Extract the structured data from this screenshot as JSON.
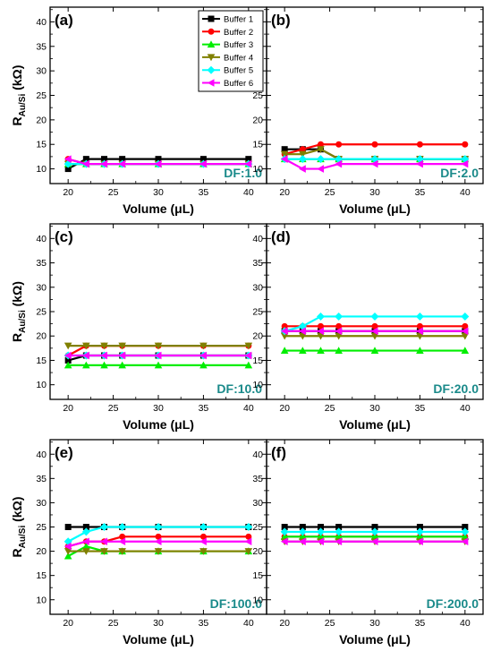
{
  "colors": {
    "df_label": "#1a8a8a",
    "series": [
      "#000000",
      "#ff0000",
      "#00ee00",
      "#808000",
      "#00ffff",
      "#ff00ff"
    ]
  },
  "legend": {
    "entries": [
      "Buffer 1",
      "Buffer 2",
      "Buffer 3",
      "Buffer 4",
      "Buffer 5",
      "Buffer 6"
    ],
    "markers": [
      "square",
      "circle",
      "triangle-up",
      "triangle-down",
      "diamond",
      "triangle-left"
    ],
    "placement": "top-right of panel (a)"
  },
  "chart_data": [
    {
      "type": "line",
      "panel": "(a)",
      "annotation": "DF:1.0",
      "xlabel": "Volume (μL)",
      "ylabel": "R_Au/Si (kΩ)",
      "xlim": [
        18,
        42
      ],
      "ylim": [
        7,
        43
      ],
      "xticks": [
        20,
        25,
        30,
        35,
        40
      ],
      "yticks": [
        10,
        15,
        20,
        25,
        30,
        35,
        40
      ],
      "x": [
        20,
        22,
        24,
        26,
        30,
        35,
        40
      ],
      "series": [
        {
          "name": "Buffer 1",
          "values": [
            10,
            12,
            12,
            12,
            12,
            12,
            12
          ]
        },
        {
          "name": "Buffer 2",
          "values": [
            12,
            11,
            11,
            11,
            11,
            11,
            11
          ]
        },
        {
          "name": "Buffer 3",
          "values": [
            11,
            11,
            11,
            11,
            11,
            11,
            11
          ]
        },
        {
          "name": "Buffer 4",
          "values": [
            11,
            11,
            11,
            11,
            11,
            11,
            11
          ]
        },
        {
          "name": "Buffer 5",
          "values": [
            11,
            11,
            11,
            11,
            11,
            11,
            11
          ]
        },
        {
          "name": "Buffer 6",
          "values": [
            12,
            11,
            11,
            11,
            11,
            11,
            11
          ]
        }
      ]
    },
    {
      "type": "line",
      "panel": "(b)",
      "annotation": "DF:2.0",
      "xlabel": "Volume (μL)",
      "ylabel": "",
      "xlim": [
        18,
        42
      ],
      "ylim": [
        7,
        43
      ],
      "xticks": [
        20,
        25,
        30,
        35,
        40
      ],
      "yticks": [
        10,
        15,
        20,
        25,
        30,
        35,
        40
      ],
      "x": [
        20,
        22,
        24,
        26,
        30,
        35,
        40
      ],
      "series": [
        {
          "name": "Buffer 1",
          "values": [
            14,
            14,
            14,
            12,
            12,
            12,
            12
          ]
        },
        {
          "name": "Buffer 2",
          "values": [
            13,
            14,
            15,
            15,
            15,
            15,
            15
          ]
        },
        {
          "name": "Buffer 3",
          "values": [
            12,
            12,
            12,
            12,
            12,
            12,
            12
          ]
        },
        {
          "name": "Buffer 4",
          "values": [
            13,
            13,
            14,
            12,
            12,
            12,
            12
          ]
        },
        {
          "name": "Buffer 5",
          "values": [
            12,
            12,
            12,
            12,
            12,
            12,
            12
          ]
        },
        {
          "name": "Buffer 6",
          "values": [
            12,
            10,
            10,
            11,
            11,
            11,
            11
          ]
        }
      ]
    },
    {
      "type": "line",
      "panel": "(c)",
      "annotation": "DF:10.0",
      "xlabel": "Volume (μL)",
      "ylabel": "R_Au/Si (kΩ)",
      "xlim": [
        18,
        42
      ],
      "ylim": [
        7,
        43
      ],
      "xticks": [
        20,
        25,
        30,
        35,
        40
      ],
      "yticks": [
        10,
        15,
        20,
        25,
        30,
        35,
        40
      ],
      "x": [
        20,
        22,
        24,
        26,
        30,
        35,
        40
      ],
      "series": [
        {
          "name": "Buffer 1",
          "values": [
            15,
            16,
            16,
            16,
            16,
            16,
            16
          ]
        },
        {
          "name": "Buffer 2",
          "values": [
            16,
            18,
            18,
            18,
            18,
            18,
            18
          ]
        },
        {
          "name": "Buffer 3",
          "values": [
            14,
            14,
            14,
            14,
            14,
            14,
            14
          ]
        },
        {
          "name": "Buffer 4",
          "values": [
            18,
            18,
            18,
            18,
            18,
            18,
            18
          ]
        },
        {
          "name": "Buffer 5",
          "values": [
            16,
            16,
            16,
            16,
            16,
            16,
            16
          ]
        },
        {
          "name": "Buffer 6",
          "values": [
            16,
            16,
            16,
            16,
            16,
            16,
            16
          ]
        }
      ]
    },
    {
      "type": "line",
      "panel": "(d)",
      "annotation": "DF:20.0",
      "xlabel": "Volume (μL)",
      "ylabel": "",
      "xlim": [
        18,
        42
      ],
      "ylim": [
        7,
        43
      ],
      "xticks": [
        20,
        25,
        30,
        35,
        40
      ],
      "yticks": [
        10,
        15,
        20,
        25,
        30,
        35,
        40
      ],
      "x": [
        20,
        22,
        24,
        26,
        30,
        35,
        40
      ],
      "series": [
        {
          "name": "Buffer 1",
          "values": [
            21,
            21,
            21,
            21,
            21,
            21,
            21
          ]
        },
        {
          "name": "Buffer 2",
          "values": [
            22,
            22,
            22,
            22,
            22,
            22,
            22
          ]
        },
        {
          "name": "Buffer 3",
          "values": [
            17,
            17,
            17,
            17,
            17,
            17,
            17
          ]
        },
        {
          "name": "Buffer 4",
          "values": [
            20,
            20,
            20,
            20,
            20,
            20,
            20
          ]
        },
        {
          "name": "Buffer 5",
          "values": [
            21,
            22,
            24,
            24,
            24,
            24,
            24
          ]
        },
        {
          "name": "Buffer 6",
          "values": [
            21,
            21,
            21,
            21,
            21,
            21,
            21
          ]
        }
      ]
    },
    {
      "type": "line",
      "panel": "(e)",
      "annotation": "DF:100.0",
      "xlabel": "Volume (μL)",
      "ylabel": "R_Au/Si (kΩ)",
      "xlim": [
        18,
        42
      ],
      "ylim": [
        7,
        43
      ],
      "xticks": [
        20,
        25,
        30,
        35,
        40
      ],
      "yticks": [
        10,
        15,
        20,
        25,
        30,
        35,
        40
      ],
      "x": [
        20,
        22,
        24,
        26,
        30,
        35,
        40
      ],
      "series": [
        {
          "name": "Buffer 1",
          "values": [
            25,
            25,
            25,
            25,
            25,
            25,
            25
          ]
        },
        {
          "name": "Buffer 2",
          "values": [
            21,
            22,
            22,
            23,
            23,
            23,
            23
          ]
        },
        {
          "name": "Buffer 3",
          "values": [
            19,
            21,
            20,
            20,
            20,
            20,
            20
          ]
        },
        {
          "name": "Buffer 4",
          "values": [
            20,
            20,
            20,
            20,
            20,
            20,
            20
          ]
        },
        {
          "name": "Buffer 5",
          "values": [
            22,
            24,
            25,
            25,
            25,
            25,
            25
          ]
        },
        {
          "name": "Buffer 6",
          "values": [
            21,
            22,
            22,
            22,
            22,
            22,
            22
          ]
        }
      ]
    },
    {
      "type": "line",
      "panel": "(f)",
      "annotation": "DF:200.0",
      "xlabel": "Volume (μL)",
      "ylabel": "",
      "xlim": [
        18,
        42
      ],
      "ylim": [
        7,
        43
      ],
      "xticks": [
        20,
        25,
        30,
        35,
        40
      ],
      "yticks": [
        10,
        15,
        20,
        25,
        30,
        35,
        40
      ],
      "x": [
        20,
        22,
        24,
        26,
        30,
        35,
        40
      ],
      "series": [
        {
          "name": "Buffer 1",
          "values": [
            25,
            25,
            25,
            25,
            25,
            25,
            25
          ]
        },
        {
          "name": "Buffer 2",
          "values": [
            23,
            23,
            23,
            23,
            23,
            23,
            23
          ]
        },
        {
          "name": "Buffer 3",
          "values": [
            23,
            23,
            23,
            23,
            23,
            23,
            23
          ]
        },
        {
          "name": "Buffer 4",
          "values": [
            22,
            22,
            22,
            22,
            22,
            22,
            22
          ]
        },
        {
          "name": "Buffer 5",
          "values": [
            24,
            24,
            24,
            24,
            24,
            24,
            24
          ]
        },
        {
          "name": "Buffer 6",
          "values": [
            22,
            22,
            22,
            22,
            22,
            22,
            22
          ]
        }
      ]
    }
  ]
}
